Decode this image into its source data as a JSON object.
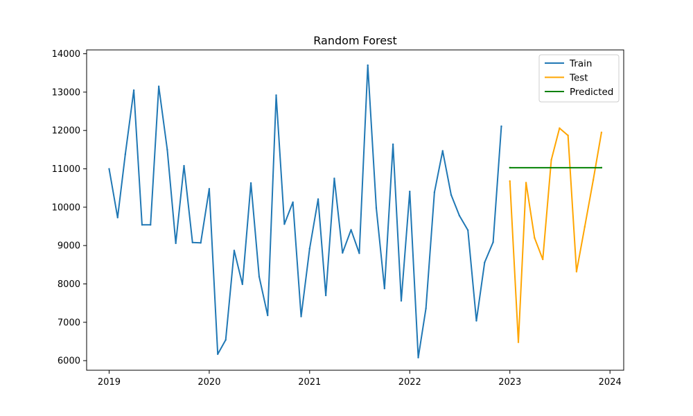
{
  "chart_data": {
    "type": "line",
    "title": "Random Forest",
    "xlabel": "",
    "ylabel": "",
    "grid": false,
    "legend_position": "top-right",
    "xlim": [
      "2018-10-11",
      "2024-02-20"
    ],
    "ylim": [
      5750,
      14100
    ],
    "x_ticks": [
      "2019",
      "2020",
      "2021",
      "2022",
      "2023",
      "2024"
    ],
    "y_ticks": [
      6000,
      7000,
      8000,
      9000,
      10000,
      11000,
      12000,
      13000,
      14000
    ],
    "series": [
      {
        "name": "Train",
        "color": "#1f77b4",
        "x": [
          "2019-01-01",
          "2019-02-01",
          "2019-03-01",
          "2019-04-01",
          "2019-05-01",
          "2019-06-01",
          "2019-07-01",
          "2019-08-01",
          "2019-09-01",
          "2019-10-01",
          "2019-11-01",
          "2019-12-01",
          "2020-01-01",
          "2020-02-01",
          "2020-03-01",
          "2020-04-01",
          "2020-05-01",
          "2020-06-01",
          "2020-07-01",
          "2020-08-01",
          "2020-09-01",
          "2020-10-01",
          "2020-11-01",
          "2020-12-01",
          "2021-01-01",
          "2021-02-01",
          "2021-03-01",
          "2021-04-01",
          "2021-05-01",
          "2021-06-01",
          "2021-07-01",
          "2021-08-01",
          "2021-09-01",
          "2021-10-01",
          "2021-11-01",
          "2021-12-01",
          "2022-01-01",
          "2022-02-01",
          "2022-03-01",
          "2022-04-01",
          "2022-05-01",
          "2022-06-01",
          "2022-07-01",
          "2022-08-01",
          "2022-09-01",
          "2022-10-01",
          "2022-11-01",
          "2022-12-01"
        ],
        "values": [
          11000,
          9730,
          11380,
          13050,
          9540,
          9540,
          13150,
          11500,
          9060,
          11080,
          9080,
          9070,
          10480,
          6170,
          6540,
          8870,
          7990,
          10630,
          8190,
          7180,
          12920,
          9560,
          10130,
          7150,
          8920,
          10210,
          7700,
          10750,
          8810,
          9410,
          8800,
          13700,
          9980,
          7880,
          11640,
          7560,
          10410,
          6080,
          7360,
          10390,
          11470,
          10320,
          9780,
          9400,
          7040,
          8560,
          9090,
          12110
        ]
      },
      {
        "name": "Test",
        "color": "#ffa500",
        "x": [
          "2023-01-01",
          "2023-02-01",
          "2023-03-01",
          "2023-04-01",
          "2023-05-01",
          "2023-06-01",
          "2023-07-01",
          "2023-08-01",
          "2023-09-01",
          "2023-10-01",
          "2023-11-01",
          "2023-12-01"
        ],
        "values": [
          10680,
          6480,
          10640,
          9200,
          8640,
          11230,
          12060,
          11870,
          8320,
          9490,
          10710,
          11950
        ]
      },
      {
        "name": "Predicted",
        "color": "#008000",
        "x": [
          "2023-01-01",
          "2023-12-01"
        ],
        "values": [
          11030,
          11030
        ]
      }
    ]
  }
}
